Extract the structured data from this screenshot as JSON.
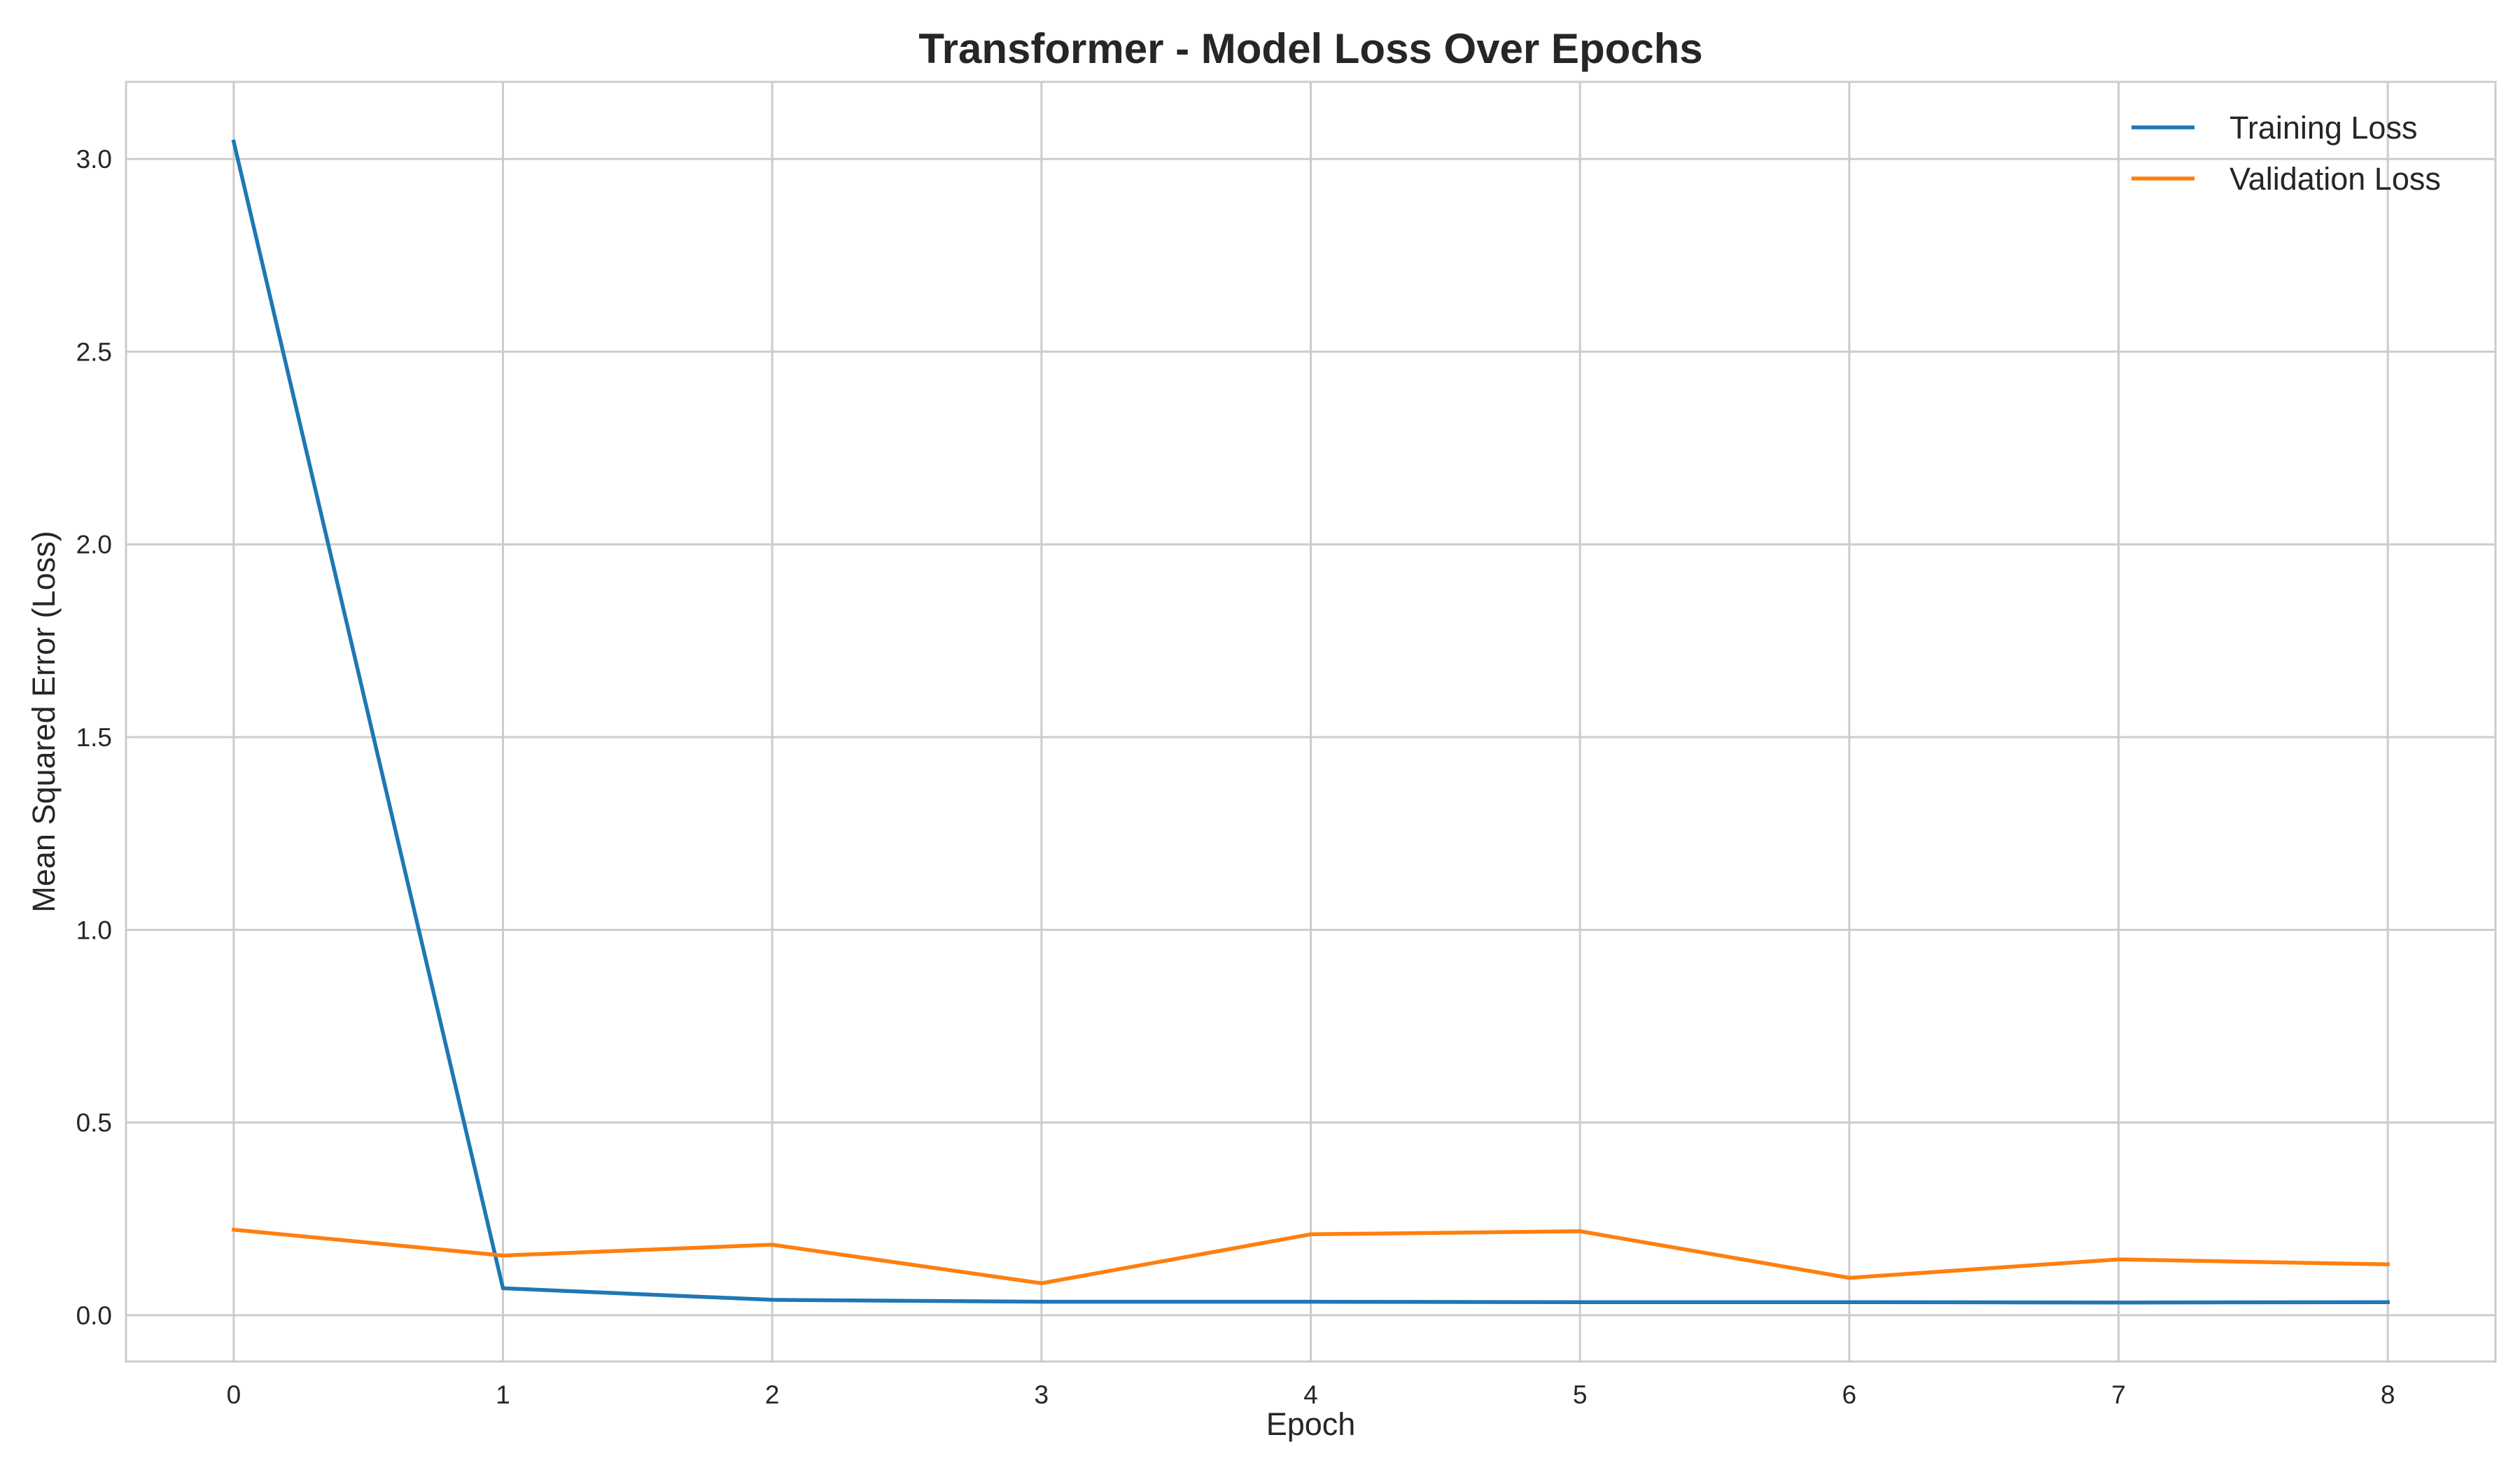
{
  "chart_data": {
    "type": "line",
    "title": "Transformer - Model Loss Over Epochs",
    "xlabel": "Epoch",
    "ylabel": "Mean Squared Error (Loss)",
    "x": [
      0,
      1,
      2,
      3,
      4,
      5,
      6,
      7,
      8
    ],
    "xlim": [
      -0.4,
      8.4
    ],
    "ylim": [
      -0.12,
      3.2
    ],
    "xticks": [
      0,
      1,
      2,
      3,
      4,
      5,
      6,
      7,
      8
    ],
    "yticks": [
      0.0,
      0.5,
      1.0,
      1.5,
      2.0,
      2.5,
      3.0
    ],
    "ytick_labels": [
      "0.0",
      "0.5",
      "1.0",
      "1.5",
      "2.0",
      "2.5",
      "3.0"
    ],
    "grid": true,
    "legend_position": "top-right",
    "series": [
      {
        "name": "Training Loss",
        "color": "#1f77b4",
        "values": [
          3.045,
          0.07,
          0.04,
          0.035,
          0.035,
          0.034,
          0.034,
          0.033,
          0.034
        ]
      },
      {
        "name": "Validation Loss",
        "color": "#ff7f0e",
        "values": [
          0.222,
          0.155,
          0.183,
          0.083,
          0.21,
          0.218,
          0.097,
          0.145,
          0.132
        ]
      }
    ]
  }
}
